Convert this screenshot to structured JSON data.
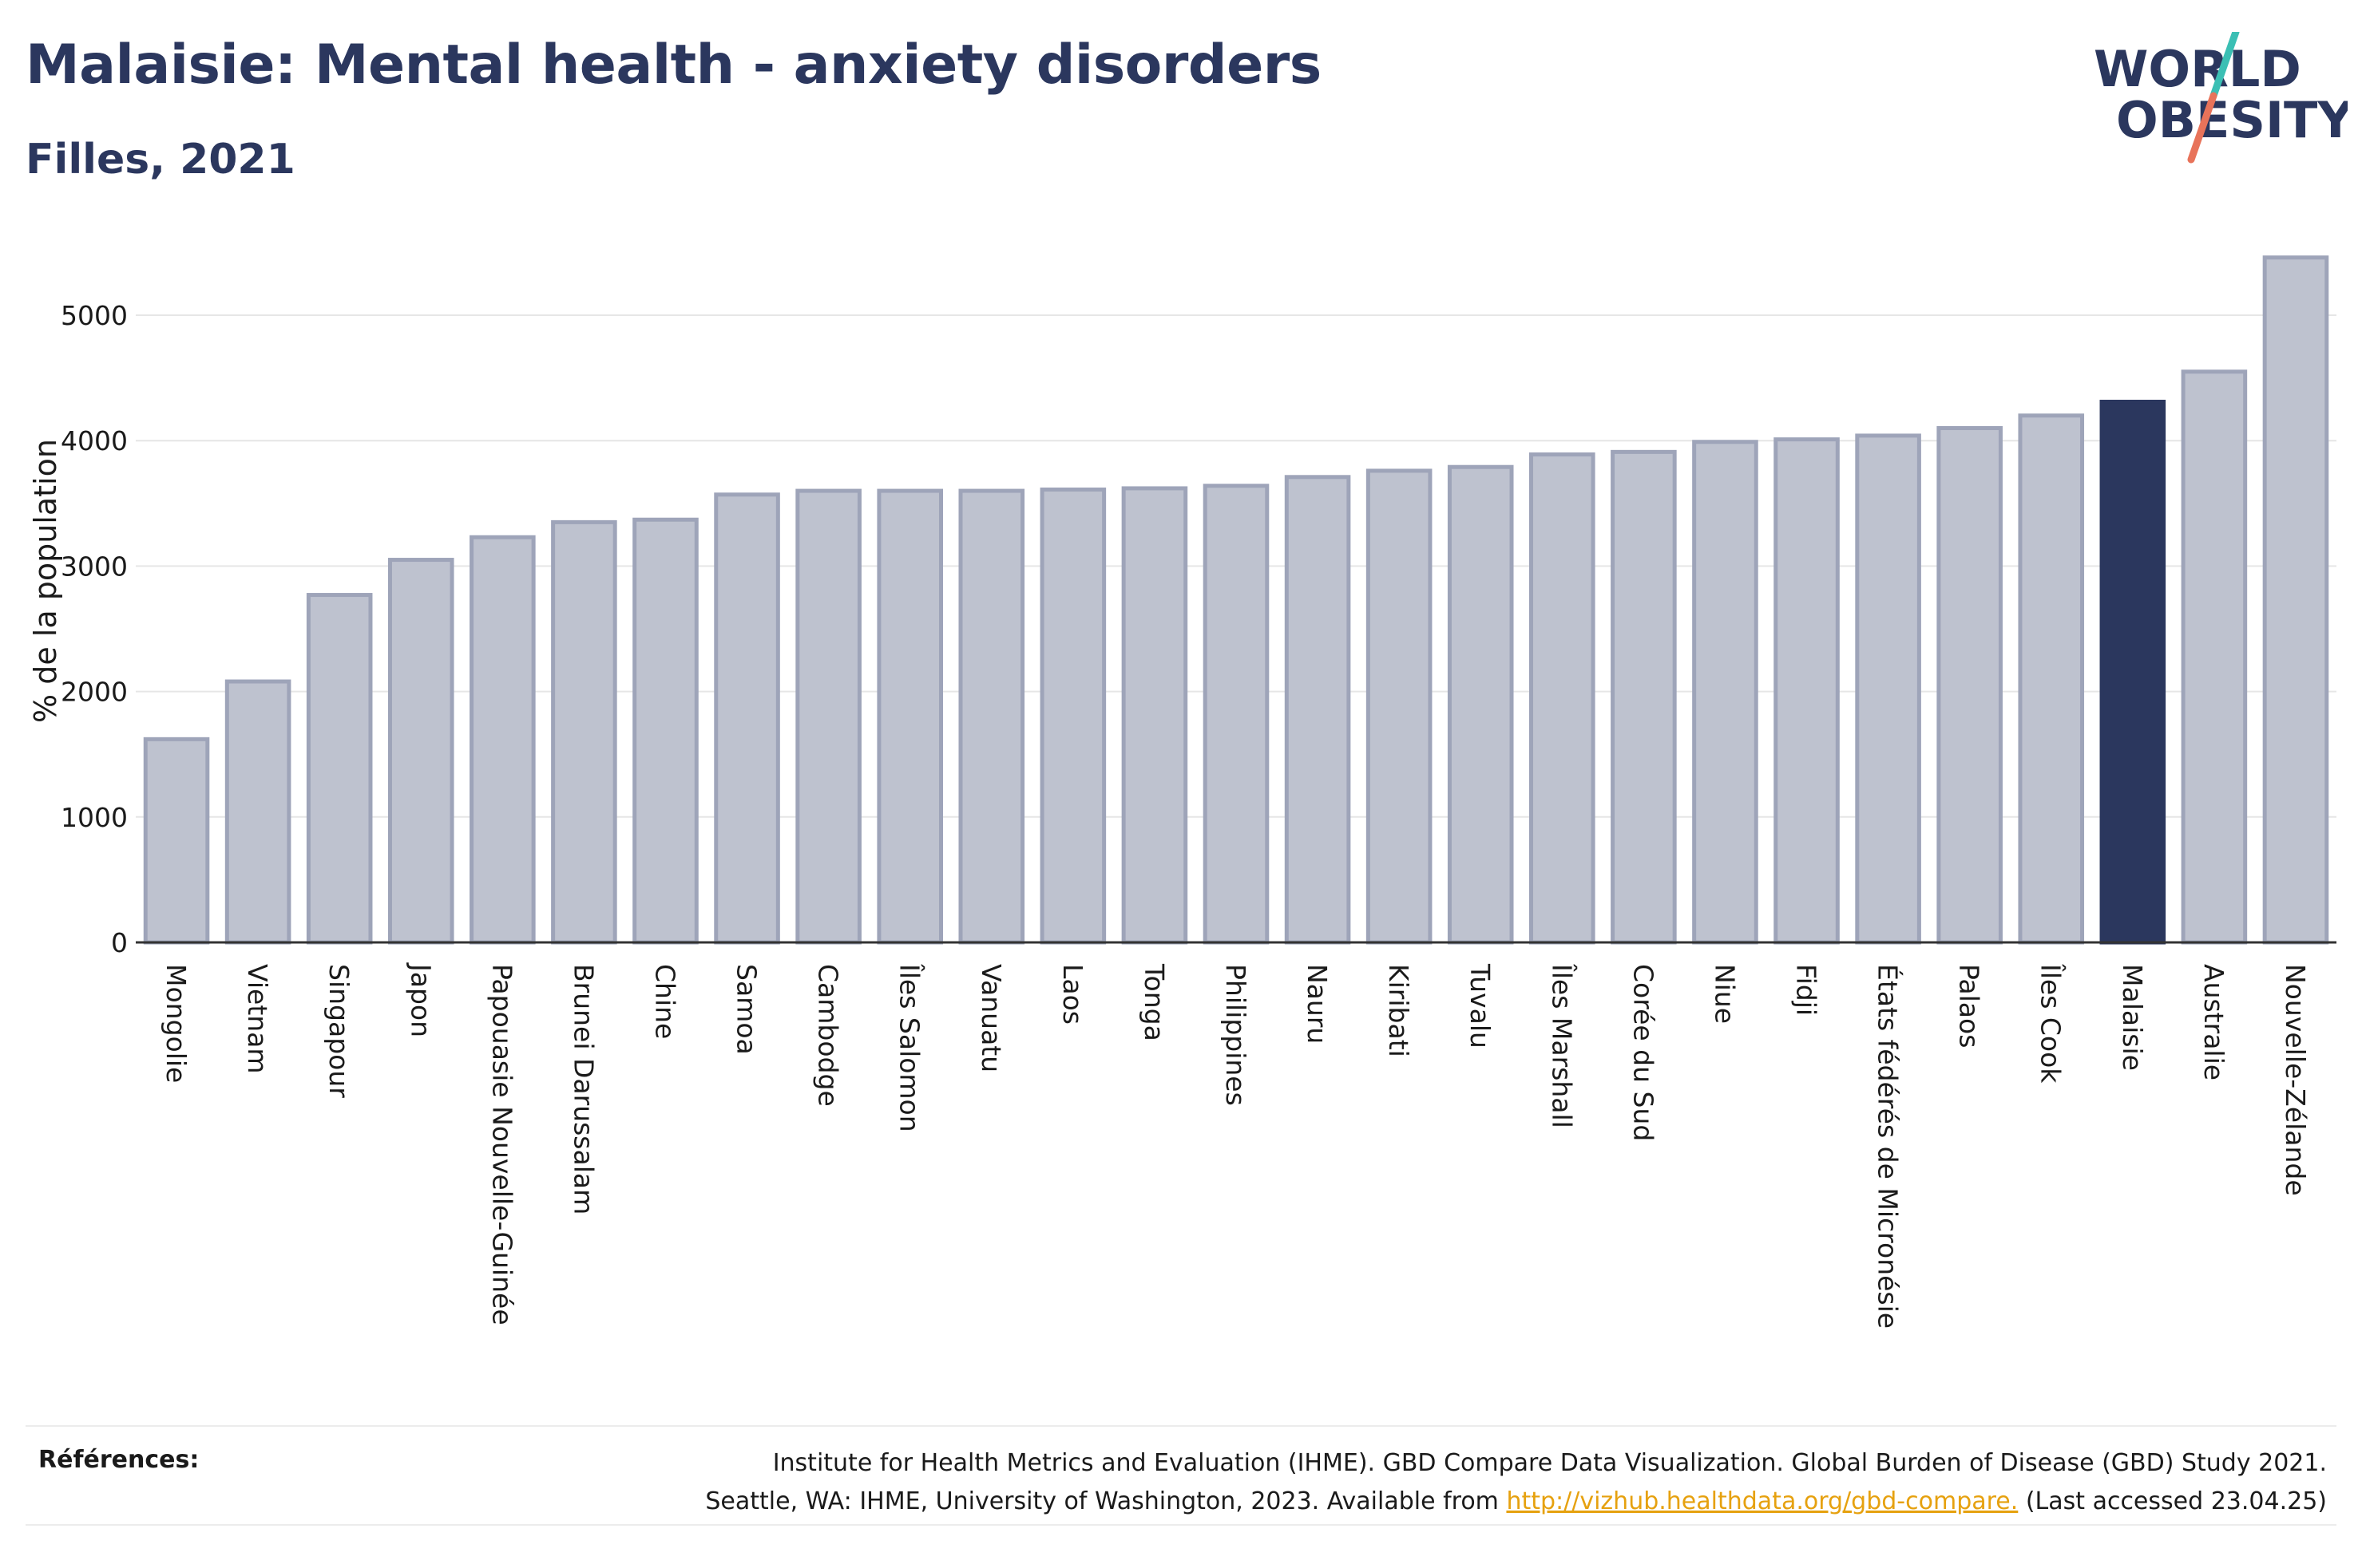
{
  "header": {
    "title": "Malaisie: Mental health - anxiety disorders",
    "subtitle": "Filles, 2021"
  },
  "logo": {
    "line1": "WORLD",
    "line2": "OBESITY",
    "colors": {
      "text": "#2b375e",
      "slash_teal": "#3bbfb4",
      "slash_coral": "#e8735a"
    }
  },
  "colors": {
    "bar_default": "#bec2cf",
    "bar_default_stroke": "#9ea4b9",
    "bar_highlight": "#2b375e",
    "grid": "#e6e6e6",
    "axis": "#333333",
    "link": "#e6a10f"
  },
  "chart_data": {
    "type": "bar",
    "title": "",
    "xlabel": "",
    "ylabel": "% de la population",
    "ylim": [
      0,
      5500
    ],
    "yticks": [
      0,
      1000,
      2000,
      3000,
      4000,
      5000
    ],
    "grid": true,
    "highlight": "Malaisie",
    "categories": [
      "Mongolie",
      "Vietnam",
      "Singapour",
      "Japon",
      "Papouasie Nouvelle-Guinée",
      "Brunei Darussalam",
      "Chine",
      "Samoa",
      "Cambodge",
      "Îles Salomon",
      "Vanuatu",
      "Laos",
      "Tonga",
      "Philippines",
      "Nauru",
      "Kiribati",
      "Tuvalu",
      "Îles Marshall",
      "Corée du Sud",
      "Niue",
      "Fidji",
      "États fédérés de Micronésie",
      "Palaos",
      "Îles Cook",
      "Malaisie",
      "Australie",
      "Nouvelle-Zélande"
    ],
    "values": [
      1620,
      2080,
      2770,
      3050,
      3230,
      3350,
      3370,
      3570,
      3600,
      3600,
      3600,
      3610,
      3620,
      3640,
      3710,
      3760,
      3790,
      3890,
      3910,
      3990,
      4010,
      4040,
      4100,
      4200,
      4310,
      4550,
      5460
    ]
  },
  "references": {
    "label": "Références:",
    "line1": "Institute for Health Metrics and Evaluation (IHME). GBD Compare Data Visualization. Global Burden of Disease (GBD) Study 2021.",
    "line2_before": "Seattle, WA: IHME, University of Washington, 2023. Available from ",
    "link": "http://vizhub.healthdata.org/gbd-compare.",
    "line2_after": " (Last accessed 23.04.25)"
  }
}
